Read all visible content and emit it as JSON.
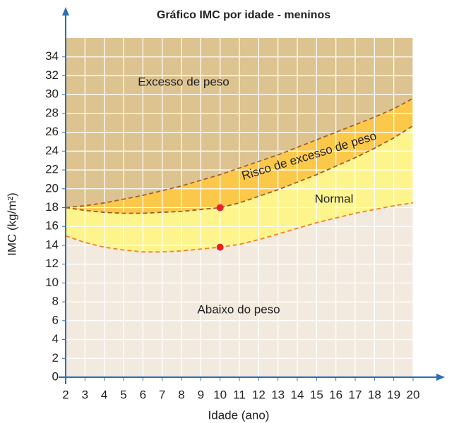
{
  "chart_data": {
    "type": "area",
    "title": "Gráfico IMC por idade - meninos",
    "xlabel": "Idade (ano)",
    "ylabel": "IMC (kg/m²)",
    "x": [
      2,
      3,
      4,
      5,
      6,
      7,
      8,
      9,
      10,
      11,
      12,
      13,
      14,
      15,
      16,
      17,
      18,
      19,
      20
    ],
    "series": [
      {
        "color": "#a0603a",
        "values": [
          18.0,
          18.2,
          18.5,
          18.9,
          19.3,
          19.8,
          20.3,
          20.9,
          21.5,
          22.2,
          22.9,
          23.6,
          24.4,
          25.2,
          26.0,
          26.8,
          27.6,
          28.5,
          29.6
        ]
      },
      {
        "color": "#9a5a30",
        "values": [
          18.0,
          17.7,
          17.5,
          17.4,
          17.4,
          17.5,
          17.6,
          17.8,
          18.0,
          18.5,
          19.2,
          19.9,
          20.7,
          21.5,
          22.4,
          23.3,
          24.3,
          25.4,
          26.7
        ]
      },
      {
        "color": "#f08020",
        "values": [
          15.0,
          14.3,
          13.8,
          13.5,
          13.3,
          13.3,
          13.4,
          13.6,
          13.8,
          14.1,
          14.6,
          15.2,
          15.8,
          16.4,
          16.9,
          17.4,
          17.8,
          18.2,
          18.5
        ]
      }
    ],
    "zone_colors": [
      "#dcc38f",
      "#fcc84a",
      "#fdf58c",
      "#f3eadf"
    ],
    "annotations": [
      "Excesso de peso",
      "Risco de excesso de peso",
      "Normal",
      "Abaixo do peso"
    ],
    "points": {
      "color": "#e8202a",
      "x": [
        10,
        10
      ],
      "y": [
        18.0,
        13.8
      ]
    },
    "xlim": [
      2,
      20
    ],
    "ylim": [
      0,
      36
    ],
    "xticks": [
      2,
      3,
      4,
      5,
      6,
      7,
      8,
      9,
      10,
      11,
      12,
      13,
      14,
      15,
      16,
      17,
      18,
      19,
      20
    ],
    "yticks": [
      0,
      2,
      4,
      6,
      8,
      10,
      12,
      14,
      16,
      18,
      20,
      22,
      24,
      26,
      28,
      30,
      32,
      34
    ],
    "grid": true
  }
}
